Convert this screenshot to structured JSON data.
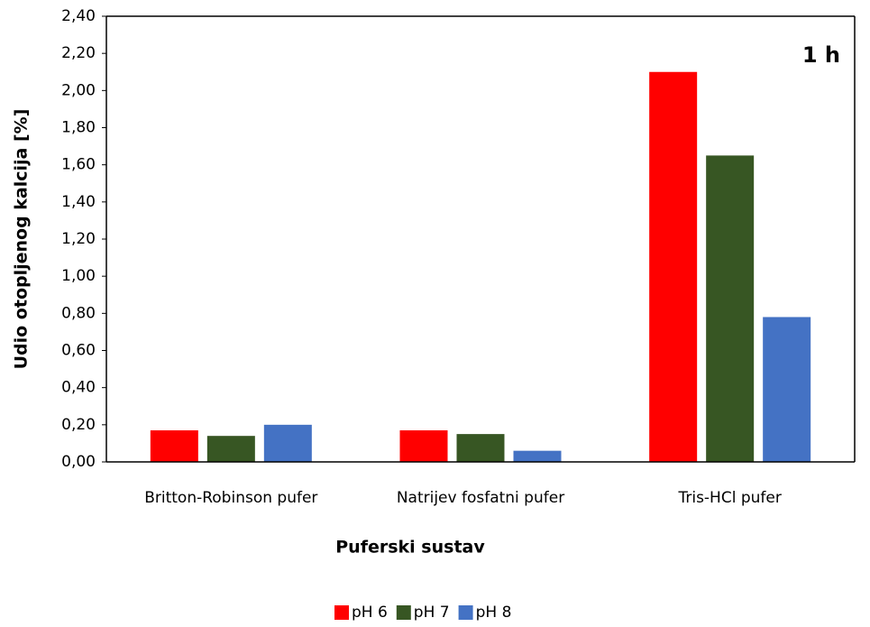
{
  "chart_data": {
    "type": "bar",
    "annotation": "1 h",
    "x_label": "Puferski sustav",
    "y_label": "Udio otopljenog kalcija [%]",
    "categories": [
      "Britton-Robinson pufer",
      "Natrijev fosfatni pufer",
      "Tris-HCl pufer"
    ],
    "series": [
      {
        "name": "pH 6",
        "color": "#ff0000",
        "values": [
          0.17,
          0.17,
          2.1
        ]
      },
      {
        "name": "pH 7",
        "color": "#375623",
        "values": [
          0.14,
          0.15,
          1.65
        ]
      },
      {
        "name": "pH 8",
        "color": "#4472c4",
        "values": [
          0.2,
          0.06,
          0.78
        ]
      }
    ],
    "ylim": [
      0,
      2.4
    ],
    "yticks": [
      {
        "value": 0,
        "label": "0,00"
      },
      {
        "value": 0.2,
        "label": "0,20"
      },
      {
        "value": 0.4,
        "label": "0,40"
      },
      {
        "value": 0.6,
        "label": "0,60"
      },
      {
        "value": 0.8,
        "label": "0,80"
      },
      {
        "value": 1.0,
        "label": "1,00"
      },
      {
        "value": 1.2,
        "label": "1,20"
      },
      {
        "value": 1.4,
        "label": "1,40"
      },
      {
        "value": 1.6,
        "label": "1,60"
      },
      {
        "value": 1.8,
        "label": "1,80"
      },
      {
        "value": 2.0,
        "label": "2,00"
      },
      {
        "value": 2.2,
        "label": "2,20"
      },
      {
        "value": 2.4,
        "label": "2,40"
      }
    ],
    "legend": "bottom"
  }
}
